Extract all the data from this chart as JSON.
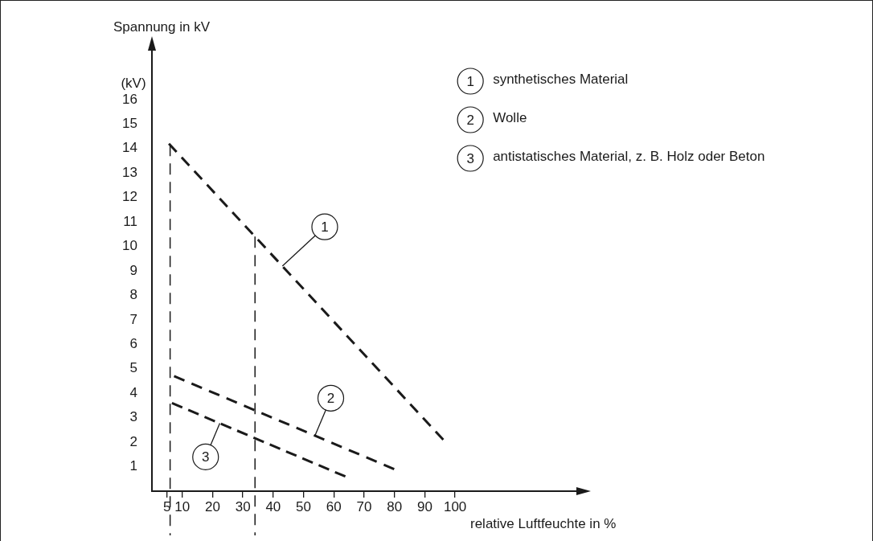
{
  "chart_data": {
    "type": "line",
    "xlabel": "relative Luftfeuchte in %",
    "ylabel": "Spannung in kV",
    "xlim": [
      0,
      140
    ],
    "ylim": [
      0,
      18
    ],
    "xticks": [
      5,
      10,
      20,
      30,
      40,
      50,
      60,
      70,
      80,
      90,
      100
    ],
    "yticks": [
      1,
      2,
      3,
      4,
      5,
      6,
      7,
      8,
      9,
      10,
      11,
      12,
      13,
      14,
      15,
      16
    ],
    "series": [
      {
        "name": "synthetisches Material",
        "color": "#1a1a1a",
        "x": [
          5.6,
          96.1
        ],
        "values": [
          14.2,
          2.1
        ]
      },
      {
        "name": "Wolle",
        "color": "#1a1a1a",
        "x": [
          7.3,
          79.9
        ],
        "values": [
          4.7,
          0.9
        ]
      },
      {
        "name": "antistatisches Material, z. B. Holz oder Beton",
        "color": "#1a1a1a",
        "x": [
          6.6,
          63.8
        ],
        "values": [
          3.6,
          0.6
        ]
      }
    ],
    "ref_lines": [
      {
        "axis": "x",
        "value": 6,
        "color": "#1a1a1a",
        "line_style": "dashed"
      },
      {
        "axis": "x",
        "value": 34,
        "color": "#1a1a1a",
        "line_style": "dashed"
      }
    ],
    "annotations": [
      "(kV)",
      {
        "text": "1",
        "x": 57,
        "y": 10.8
      },
      {
        "text": "2",
        "x": 59,
        "y": 3.8
      },
      {
        "text": "3",
        "x": 17.7,
        "y": 1.4
      }
    ],
    "legend": "top right",
    "grid": false,
    "line_style": "dashed",
    "marker": "none"
  }
}
